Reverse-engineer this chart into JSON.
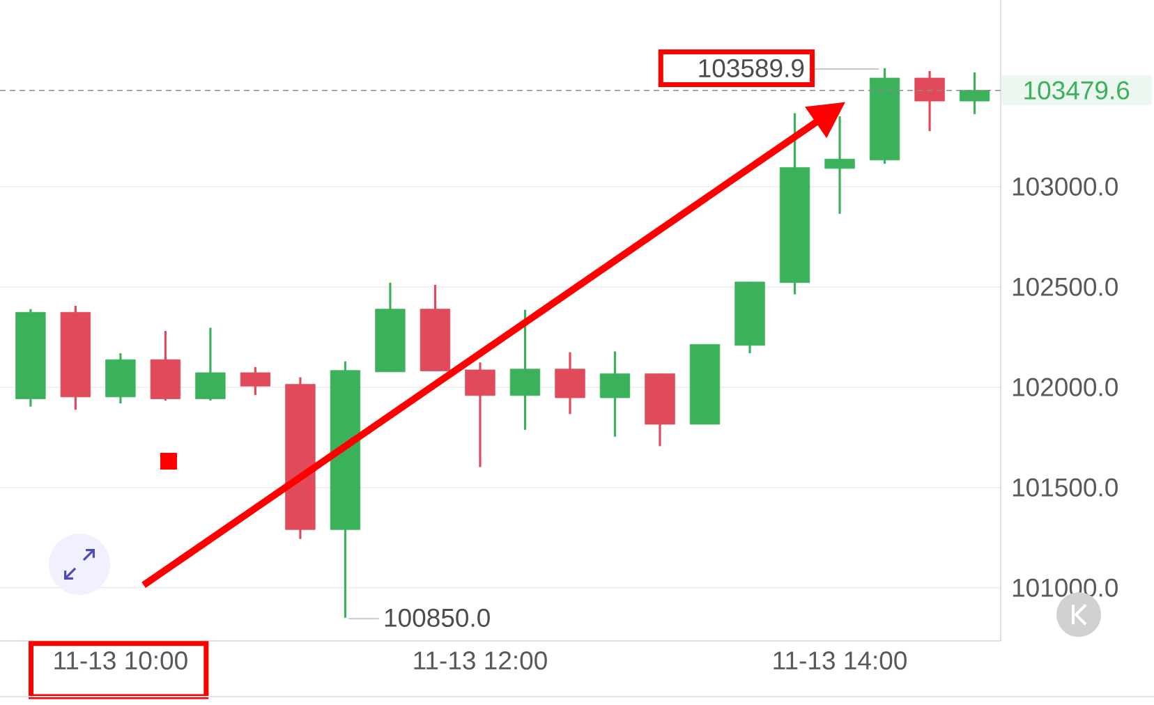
{
  "chart_data": {
    "type": "candlestick",
    "categories": [
      null,
      null,
      "11-13 10:00",
      null,
      null,
      null,
      null,
      null,
      null,
      null,
      "11-13 12:00",
      null,
      null,
      null,
      null,
      null,
      null,
      null,
      "11-13 14:00",
      null,
      null,
      null
    ],
    "ohlc": [
      [
        101942,
        102389,
        101903,
        102373
      ],
      [
        102373,
        102405,
        101887,
        101951
      ],
      [
        101951,
        102169,
        101919,
        102137
      ],
      [
        102137,
        102280,
        101933,
        101942
      ],
      [
        101942,
        102296,
        101933,
        102072
      ],
      [
        102072,
        102100,
        101961,
        102005
      ],
      [
        102014,
        102049,
        101243,
        101290
      ],
      [
        101290,
        102128,
        100850,
        102083
      ],
      [
        102076,
        102521,
        102076,
        102389
      ],
      [
        102389,
        102510,
        102081,
        102081
      ],
      [
        102086,
        102123,
        101602,
        101958
      ],
      [
        101958,
        102385,
        101787,
        102090
      ],
      [
        102090,
        102174,
        101866,
        101947
      ],
      [
        101947,
        102178,
        101753,
        102067
      ],
      [
        102067,
        102067,
        101706,
        101815
      ],
      [
        101815,
        102213,
        101815,
        102213
      ],
      [
        102208,
        102524,
        102169,
        102524
      ],
      [
        102521,
        103366,
        102463,
        103095
      ],
      [
        103090,
        103350,
        102864,
        103137
      ],
      [
        103132,
        103589.9,
        103114,
        103541
      ],
      [
        103541,
        103576,
        103276,
        103426
      ],
      [
        103426,
        103569,
        103361,
        103479.6
      ]
    ],
    "colors": [
      "#3cb15c",
      "#e04a5a",
      "#3cb15c",
      "#e04a5a",
      "#3cb15c",
      "#e04a5a",
      "#e04a5a",
      "#3cb15c",
      "#3cb15c",
      "#e04a5a",
      "#e04a5a",
      "#3cb15c",
      "#e04a5a",
      "#3cb15c",
      "#e04a5a",
      "#3cb15c",
      "#3cb15c",
      "#3cb15c",
      "#3cb15c",
      "#3cb15c",
      "#e04a5a",
      "#3cb15c"
    ],
    "ylim": [
      100735,
      103930
    ],
    "yticks": [
      {
        "value": 101000,
        "label": "101000.0"
      },
      {
        "value": 101500,
        "label": "101500.0"
      },
      {
        "value": 102000,
        "label": "102000.0"
      },
      {
        "value": 102500,
        "label": "102500.0"
      },
      {
        "value": 103000,
        "label": "103000.0"
      }
    ],
    "grid": "y",
    "ref_lines": [
      {
        "axis": "y",
        "value": 103479.6,
        "label": "103479.6",
        "color": "#8c8c8c",
        "line_style": "dashed"
      }
    ],
    "annotations": [
      "103589.9",
      "100850.0"
    ]
  }
}
